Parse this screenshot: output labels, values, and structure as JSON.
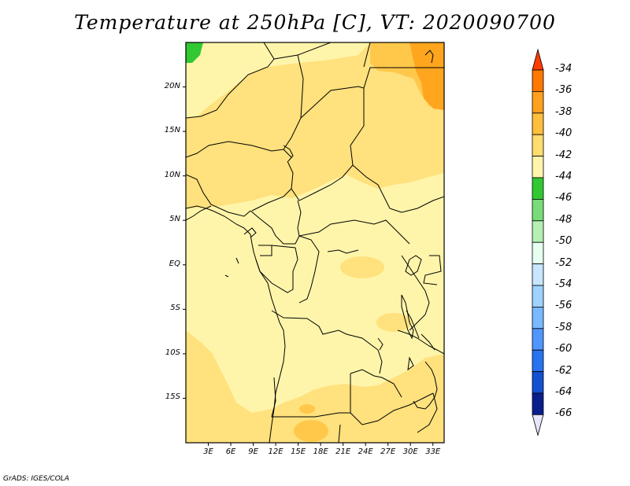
{
  "title": "Temperature at 250hPa [C], VT: 2020090700",
  "credit": "GrADS: IGES/COLA",
  "map": {
    "lat_labels": [
      "20N",
      "15N",
      "10N",
      "5N",
      "EQ",
      "5S",
      "10S",
      "15S"
    ],
    "lat_values": [
      20,
      15,
      10,
      5,
      0,
      -5,
      -10,
      -15
    ],
    "lon_labels": [
      "3E",
      "6E",
      "9E",
      "12E",
      "15E",
      "18E",
      "21E",
      "24E",
      "27E",
      "30E",
      "33E"
    ],
    "lon_values": [
      3,
      6,
      9,
      12,
      15,
      18,
      21,
      24,
      27,
      30,
      33
    ],
    "lon_range": [
      0,
      34.5
    ],
    "lat_range": [
      -20,
      25
    ],
    "field_colors": {
      "lt_44": "#32c832",
      "m44_m42": "#fff5aa",
      "m42_m40": "#ffe17d",
      "m40_m38": "#ffc84b",
      "m38_m36": "#ffa51e"
    }
  },
  "colorbar": {
    "levels": [
      "-34",
      "-36",
      "-38",
      "-40",
      "-42",
      "-44",
      "-46",
      "-48",
      "-50",
      "-52",
      "-54",
      "-56",
      "-58",
      "-60",
      "-62",
      "-64",
      "-66"
    ],
    "colors": [
      "#ff3c00",
      "#ff7800",
      "#ffa01e",
      "#ffbe3c",
      "#ffdc6e",
      "#fff5aa",
      "#32c832",
      "#78dc78",
      "#b4f0b4",
      "#e6fff0",
      "#c8e6ff",
      "#a0d2ff",
      "#78b9ff",
      "#5096ff",
      "#2873f0",
      "#1450d2",
      "#0a1e8c",
      "#e6e6fa"
    ]
  }
}
